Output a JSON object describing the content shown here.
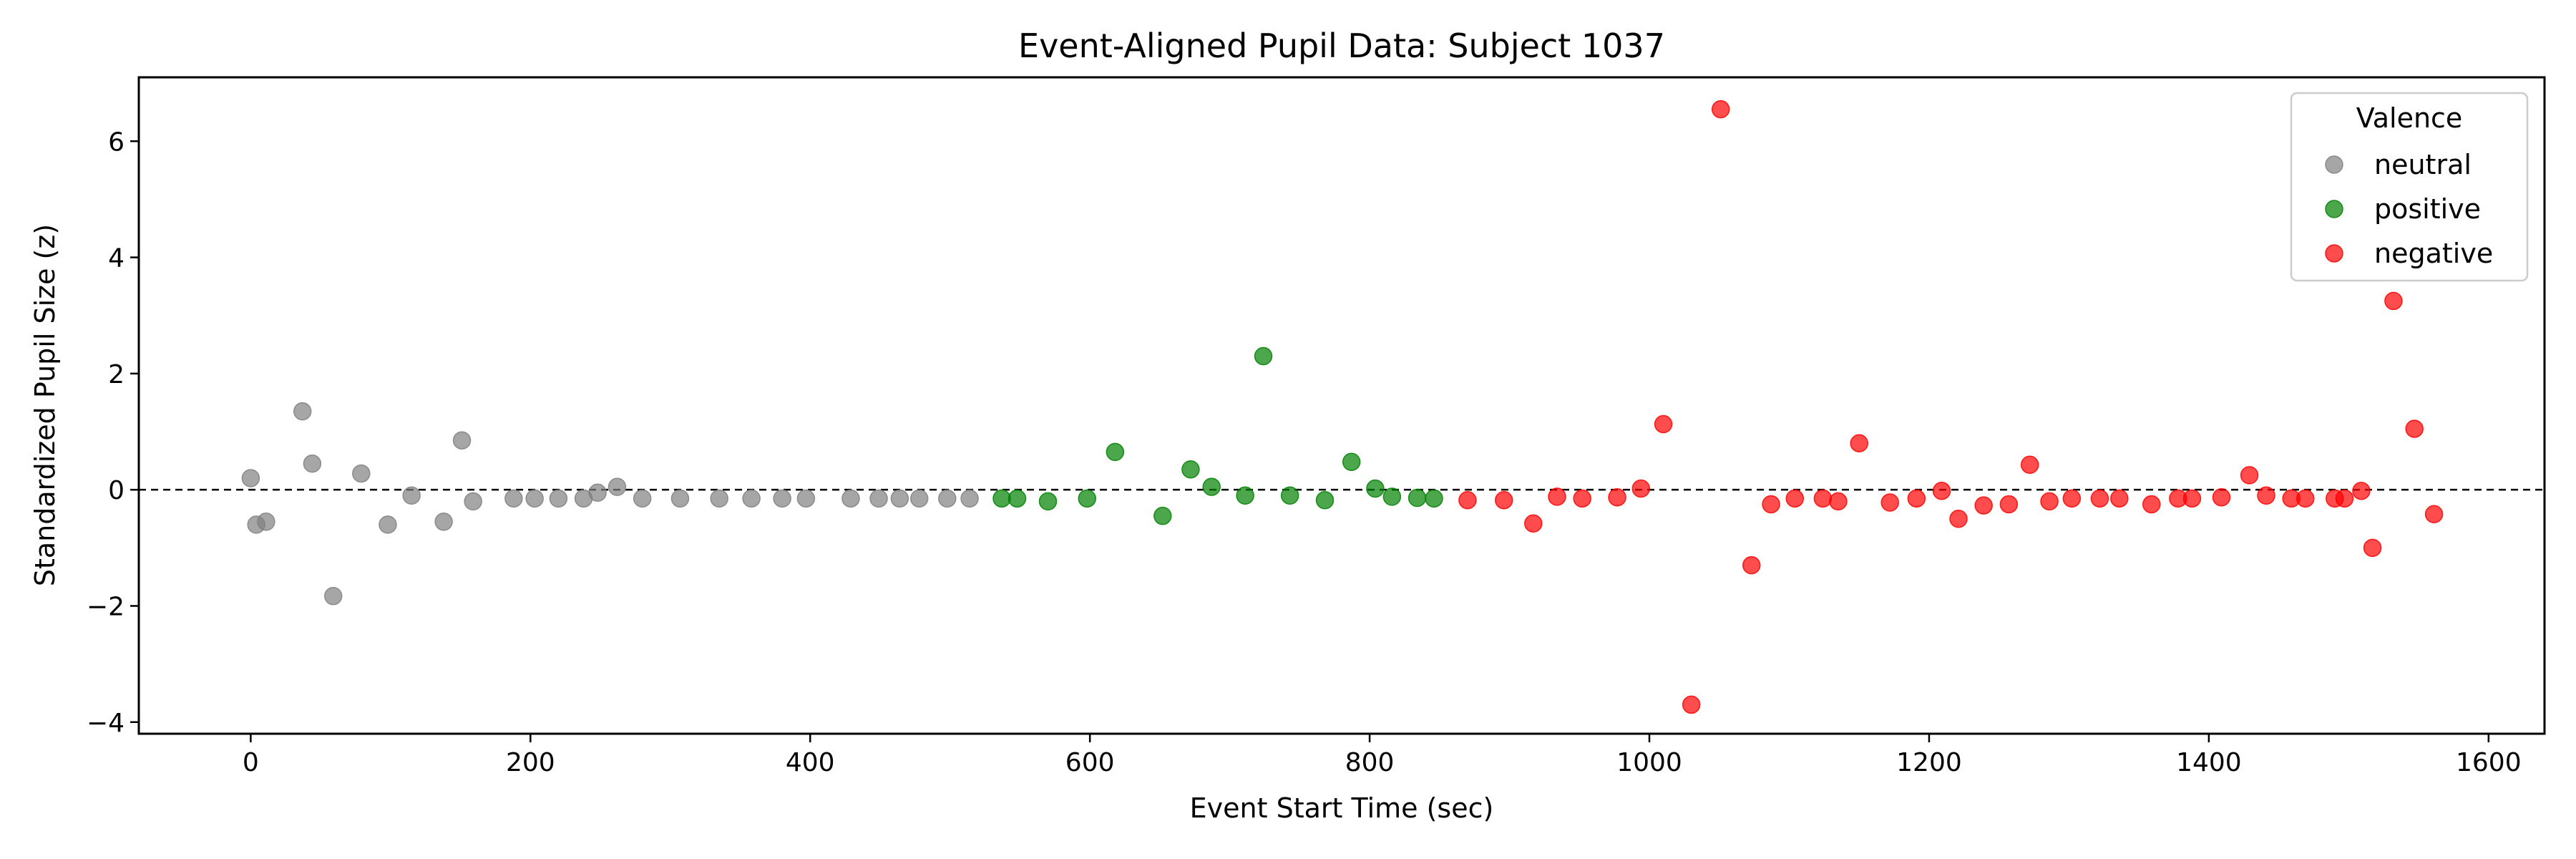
{
  "chart_data": {
    "type": "scatter",
    "title": "Event-Aligned Pupil Data: Subject 1037",
    "xlabel": "Event Start Time (sec)",
    "ylabel": "Standardized Pupil Size (z)",
    "xlim": [
      -80,
      1640
    ],
    "ylim": [
      -4.2,
      7.1
    ],
    "xticks": [
      0,
      200,
      400,
      600,
      800,
      1000,
      1200,
      1400,
      1600
    ],
    "xtick_labels": [
      "0",
      "200",
      "400",
      "600",
      "800",
      "1000",
      "1200",
      "1400",
      "1600"
    ],
    "yticks": [
      -4,
      -2,
      0,
      2,
      4,
      6
    ],
    "ytick_labels": [
      "−4",
      "−2",
      "0",
      "2",
      "4",
      "6"
    ],
    "reference_line": {
      "y": 0,
      "style": "dashed",
      "color": "#000000"
    },
    "grid": false,
    "legend": {
      "title": "Valence",
      "placement": "top-right"
    },
    "series": [
      {
        "name": "neutral",
        "color": "#808080",
        "points": [
          [
            0,
            0.2
          ],
          [
            4,
            -0.6
          ],
          [
            11,
            -0.55
          ],
          [
            37,
            1.35
          ],
          [
            44,
            0.45
          ],
          [
            59,
            -1.83
          ],
          [
            79,
            0.28
          ],
          [
            98,
            -0.6
          ],
          [
            115,
            -0.1
          ],
          [
            138,
            -0.55
          ],
          [
            151,
            0.85
          ],
          [
            159,
            -0.2
          ],
          [
            188,
            -0.15
          ],
          [
            203,
            -0.15
          ],
          [
            220,
            -0.15
          ],
          [
            238,
            -0.15
          ],
          [
            248,
            -0.05
          ],
          [
            262,
            0.05
          ],
          [
            280,
            -0.15
          ],
          [
            307,
            -0.15
          ],
          [
            335,
            -0.15
          ],
          [
            358,
            -0.15
          ],
          [
            380,
            -0.15
          ],
          [
            397,
            -0.15
          ],
          [
            429,
            -0.15
          ],
          [
            449,
            -0.15
          ],
          [
            464,
            -0.15
          ],
          [
            478,
            -0.15
          ],
          [
            498,
            -0.15
          ],
          [
            514,
            -0.15
          ]
        ]
      },
      {
        "name": "positive",
        "color": "#008000",
        "points": [
          [
            537,
            -0.15
          ],
          [
            548,
            -0.15
          ],
          [
            570,
            -0.2
          ],
          [
            598,
            -0.15
          ],
          [
            618,
            0.65
          ],
          [
            652,
            -0.45
          ],
          [
            672,
            0.35
          ],
          [
            687,
            0.05
          ],
          [
            711,
            -0.1
          ],
          [
            724,
            2.3
          ],
          [
            743,
            -0.1
          ],
          [
            768,
            -0.18
          ],
          [
            787,
            0.48
          ],
          [
            804,
            0.02
          ],
          [
            816,
            -0.12
          ],
          [
            834,
            -0.14
          ],
          [
            846,
            -0.15
          ]
        ]
      },
      {
        "name": "negative",
        "color": "#ff0000",
        "points": [
          [
            870,
            -0.18
          ],
          [
            896,
            -0.18
          ],
          [
            917,
            -0.58
          ],
          [
            934,
            -0.12
          ],
          [
            952,
            -0.15
          ],
          [
            977,
            -0.13
          ],
          [
            994,
            0.02
          ],
          [
            1010,
            1.13
          ],
          [
            1030,
            -3.7
          ],
          [
            1051,
            6.55
          ],
          [
            1073,
            -1.3
          ],
          [
            1087,
            -0.25
          ],
          [
            1104,
            -0.15
          ],
          [
            1124,
            -0.15
          ],
          [
            1135,
            -0.2
          ],
          [
            1150,
            0.8
          ],
          [
            1172,
            -0.22
          ],
          [
            1191,
            -0.15
          ],
          [
            1209,
            -0.02
          ],
          [
            1221,
            -0.5
          ],
          [
            1239,
            -0.27
          ],
          [
            1257,
            -0.25
          ],
          [
            1272,
            0.43
          ],
          [
            1286,
            -0.2
          ],
          [
            1302,
            -0.15
          ],
          [
            1322,
            -0.15
          ],
          [
            1336,
            -0.15
          ],
          [
            1359,
            -0.25
          ],
          [
            1378,
            -0.15
          ],
          [
            1388,
            -0.15
          ],
          [
            1409,
            -0.13
          ],
          [
            1429,
            0.25
          ],
          [
            1441,
            -0.1
          ],
          [
            1459,
            -0.15
          ],
          [
            1469,
            -0.15
          ],
          [
            1490,
            -0.15
          ],
          [
            1497,
            -0.15
          ],
          [
            1509,
            -0.02
          ],
          [
            1517,
            -1.0
          ],
          [
            1532,
            3.25
          ],
          [
            1547,
            1.05
          ],
          [
            1561,
            -0.42
          ]
        ]
      }
    ]
  }
}
